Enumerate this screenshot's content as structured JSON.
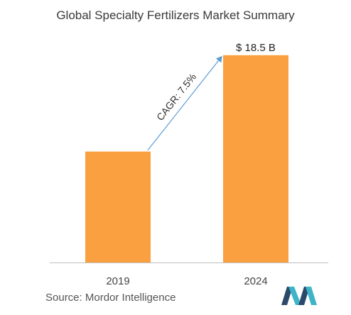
{
  "chart_data": {
    "type": "bar",
    "title": "Global Specialty Fertilizers Market Summary",
    "categories": [
      "2019",
      "2024"
    ],
    "values": [
      9.9,
      18.5
    ],
    "value_labels": [
      "",
      "$ 18.5 B"
    ],
    "annotation": "CAGR: 7.5%",
    "xlabel": "",
    "ylabel": "",
    "ylim": [
      0,
      19.5
    ],
    "grid": false,
    "colors": {
      "bar": "#FBA040",
      "arrow": "#5b9bd5",
      "axis": "#bfbfbf"
    }
  },
  "source": "Source: Mordor Intelligence",
  "logo": {
    "icon": "mordor-intelligence-logo",
    "colors": [
      "#2b4a6b",
      "#3fb4c8"
    ]
  }
}
